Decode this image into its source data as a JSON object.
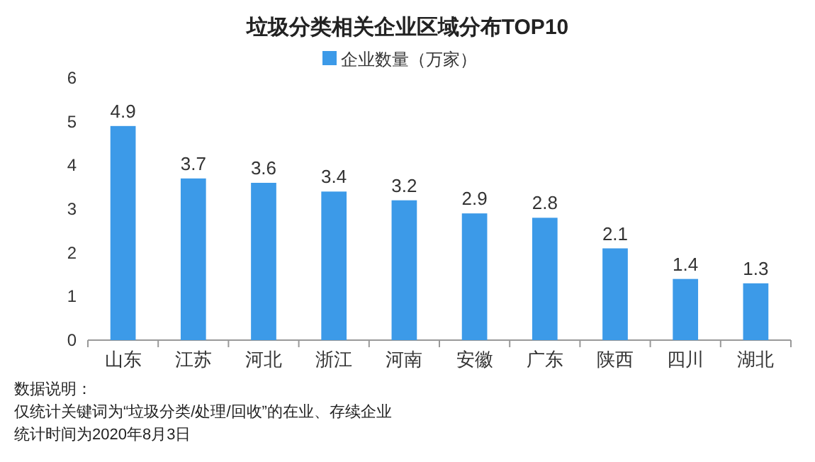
{
  "chart_data": {
    "type": "bar",
    "title": "垃圾分类相关企业区域分布TOP10",
    "categories": [
      "山东",
      "江苏",
      "河北",
      "浙江",
      "河南",
      "安徽",
      "广东",
      "陕西",
      "四川",
      "湖北"
    ],
    "series": [
      {
        "name": "企业数量（万家）",
        "color": "#3c9ae8",
        "values": [
          4.9,
          3.7,
          3.6,
          3.4,
          3.2,
          2.9,
          2.8,
          2.1,
          1.4,
          1.3
        ]
      }
    ],
    "ylim": [
      0,
      6
    ],
    "yticks": [
      0,
      1,
      2,
      3,
      4,
      5,
      6
    ],
    "data_labels": true,
    "legend": "top",
    "annotations": [
      "数据说明：",
      "仅统计关键词为“垃圾分类/处理/回收”的在业、存续企业",
      "统计时间为2020年8月3日"
    ]
  }
}
